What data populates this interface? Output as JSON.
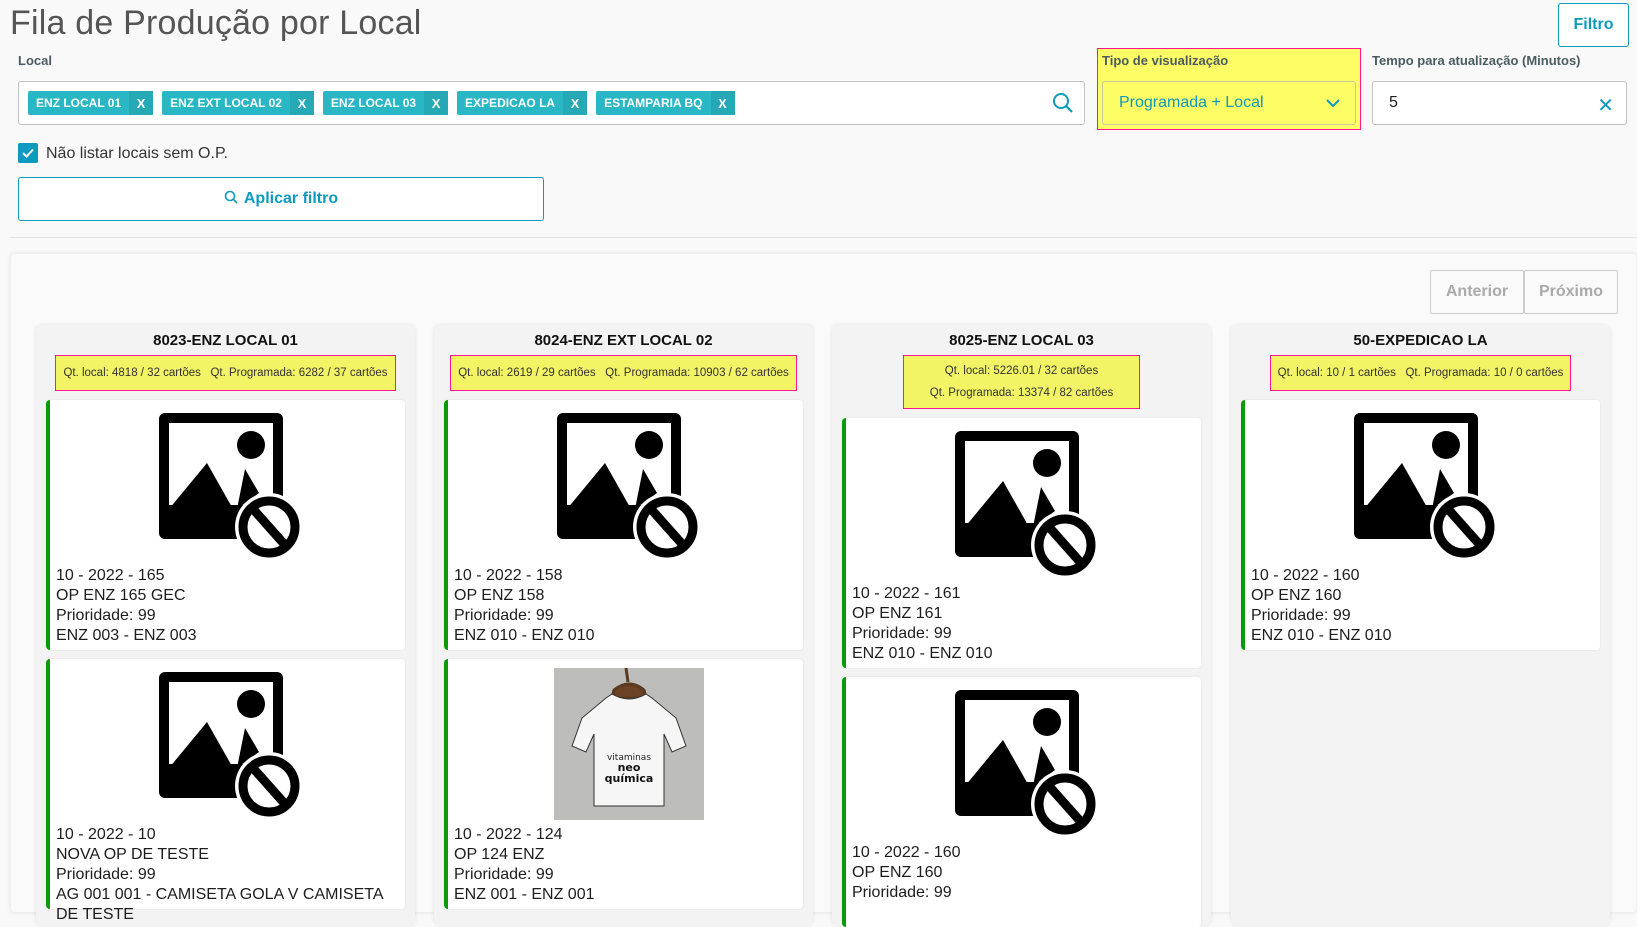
{
  "header": {
    "title": "Fila de Produção por Local",
    "filter_button": "Filtro"
  },
  "filters": {
    "local_label": "Local",
    "tags": [
      "ENZ LOCAL 01",
      "ENZ EXT LOCAL 02",
      "ENZ LOCAL 03",
      "EXPEDICAO LA",
      "ESTAMPARIA BQ"
    ],
    "tag_remove": "X",
    "view_type_label": "Tipo de visualização",
    "view_type_value": "Programada + Local",
    "refresh_label": "Tempo para atualização (Minutos)",
    "refresh_value": "5",
    "checkbox_label": "Não listar locais sem O.P.",
    "checkbox_checked": true,
    "apply_button": "Aplicar filtro"
  },
  "pagination": {
    "prev": "Anterior",
    "next": "Próximo"
  },
  "colors": {
    "accent": "#0c9abe",
    "tag": "#29b6c5",
    "highlight": "#fdfd66",
    "highlight_border": "#ff1493",
    "card_status": "#0a9a0a"
  },
  "columns": [
    {
      "title": "8023-ENZ LOCAL 01",
      "stats_local": "Qt. local: 4818 / 32 cartões",
      "stats_prog": "Qt. Programada: 6282 / 37 cartões",
      "cards": [
        {
          "image": "no-image-icon",
          "lines": [
            "10 - 2022 - 165",
            "OP ENZ 165 GEC",
            "Prioridade: 99",
            "ENZ 003 - ENZ 003"
          ]
        },
        {
          "image": "no-image-icon",
          "lines": [
            "10 - 2022 - 10",
            "NOVA OP DE TESTE",
            "Prioridade: 99",
            "AG 001 001 - CAMISETA GOLA V CAMISETA",
            "DE TESTE"
          ]
        }
      ]
    },
    {
      "title": "8024-ENZ EXT LOCAL 02",
      "stats_local": "Qt. local: 2619 / 29 cartões",
      "stats_prog": "Qt. Programada: 10903 / 62 cartões",
      "cards": [
        {
          "image": "no-image-icon",
          "lines": [
            "10 - 2022 - 158",
            "OP ENZ 158",
            "Prioridade: 99",
            "ENZ 010 - ENZ 010"
          ]
        },
        {
          "image": "jersey-photo",
          "lines": [
            "10 - 2022 - 124",
            "OP 124 ENZ",
            "Prioridade: 99",
            "ENZ 001 - ENZ 001"
          ]
        }
      ]
    },
    {
      "title": "8025-ENZ LOCAL 03",
      "stats_local": "Qt. local: 5226.01 / 32 cartões",
      "stats_prog": "Qt. Programada: 13374 / 82 cartões",
      "cards": [
        {
          "image": "no-image-icon",
          "lines": [
            "10 - 2022 - 161",
            "OP ENZ 161",
            "Prioridade: 99",
            "ENZ 010 - ENZ 010"
          ]
        },
        {
          "image": "no-image-icon",
          "lines": [
            "10 - 2022 - 160",
            "OP ENZ 160",
            "Prioridade: 99"
          ]
        }
      ]
    },
    {
      "title": "50-EXPEDICAO LA",
      "stats_local": "Qt. local: 10 / 1 cartões",
      "stats_prog": "Qt. Programada: 10 / 0 cartões",
      "cards": [
        {
          "image": "no-image-icon",
          "lines": [
            "10 - 2022 - 160",
            "OP ENZ 160",
            "Prioridade: 99",
            "ENZ 010 - ENZ 010"
          ]
        }
      ]
    }
  ]
}
